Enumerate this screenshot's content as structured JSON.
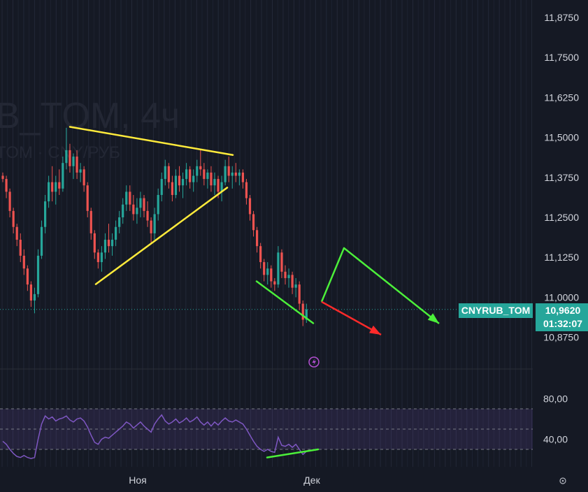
{
  "chart_data": [
    {
      "type": "candlestick",
      "watermark": {
        "title": "B_TOM, 4ч",
        "subtitle": "TOM · CNY/РУБ"
      },
      "ylim": [
        10.8,
        11.94
      ],
      "y_ticks": [
        "11,8750",
        "11,7500",
        "11,6250",
        "11,5000",
        "11,3750",
        "11,2500",
        "11,1250",
        "11,0000",
        "10,8750"
      ],
      "x_ticks": [
        "Ноя",
        "Дек"
      ],
      "grid": true,
      "last_price": {
        "symbol": "CNYRUB_TOM",
        "value": "10,9620",
        "countdown": "01:32:07",
        "price": 10.962
      },
      "colors": {
        "up": "#26a69a",
        "down": "#ef5350",
        "yellow_lines": "#ffeb3b",
        "green_lines": "#4cf03a",
        "red_arrow": "#ff2a2a"
      },
      "annotations": [
        {
          "kind": "line",
          "color": "yellow",
          "from": [
            0.1,
            11.533
          ],
          "to": [
            0.333,
            11.445
          ]
        },
        {
          "kind": "line",
          "color": "yellow",
          "from": [
            0.137,
            11.041
          ],
          "to": [
            0.325,
            11.343
          ]
        },
        {
          "kind": "line",
          "color": "green",
          "from": [
            0.367,
            11.05
          ],
          "to": [
            0.448,
            10.919
          ]
        },
        {
          "kind": "polyline-arrow",
          "color": "green",
          "points": [
            [
              0.46,
              10.986
            ],
            [
              0.492,
              11.154
            ],
            [
              0.628,
              10.918
            ]
          ]
        },
        {
          "kind": "arrow",
          "color": "red",
          "from": [
            0.46,
            10.986
          ],
          "to": [
            0.545,
            10.883
          ]
        }
      ],
      "candles_approx": [
        {
          "o": 11.38,
          "h": 11.39,
          "l": 11.36,
          "c": 11.37
        },
        {
          "o": 11.37,
          "h": 11.38,
          "l": 11.31,
          "c": 11.33
        },
        {
          "o": 11.33,
          "h": 11.34,
          "l": 11.25,
          "c": 11.27
        },
        {
          "o": 11.27,
          "h": 11.28,
          "l": 11.2,
          "c": 11.22
        },
        {
          "o": 11.22,
          "h": 11.23,
          "l": 11.16,
          "c": 11.18
        },
        {
          "o": 11.18,
          "h": 11.2,
          "l": 11.11,
          "c": 11.13
        },
        {
          "o": 11.13,
          "h": 11.15,
          "l": 11.07,
          "c": 11.09
        },
        {
          "o": 11.09,
          "h": 11.1,
          "l": 11.02,
          "c": 11.04
        },
        {
          "o": 11.04,
          "h": 11.05,
          "l": 10.97,
          "c": 10.99
        },
        {
          "o": 10.99,
          "h": 11.03,
          "l": 10.95,
          "c": 11.01
        },
        {
          "o": 11.01,
          "h": 11.15,
          "l": 11.0,
          "c": 11.13
        },
        {
          "o": 11.13,
          "h": 11.24,
          "l": 11.12,
          "c": 11.22
        },
        {
          "o": 11.22,
          "h": 11.32,
          "l": 11.2,
          "c": 11.3
        },
        {
          "o": 11.3,
          "h": 11.38,
          "l": 11.28,
          "c": 11.36
        },
        {
          "o": 11.36,
          "h": 11.41,
          "l": 11.3,
          "c": 11.33
        },
        {
          "o": 11.33,
          "h": 11.38,
          "l": 11.29,
          "c": 11.36
        },
        {
          "o": 11.36,
          "h": 11.4,
          "l": 11.32,
          "c": 11.34
        },
        {
          "o": 11.34,
          "h": 11.44,
          "l": 11.33,
          "c": 11.42
        },
        {
          "o": 11.42,
          "h": 11.53,
          "l": 11.4,
          "c": 11.46
        },
        {
          "o": 11.46,
          "h": 11.48,
          "l": 11.39,
          "c": 11.41
        },
        {
          "o": 11.41,
          "h": 11.45,
          "l": 11.37,
          "c": 11.44
        },
        {
          "o": 11.44,
          "h": 11.46,
          "l": 11.37,
          "c": 11.39
        },
        {
          "o": 11.39,
          "h": 11.42,
          "l": 11.36,
          "c": 11.4
        },
        {
          "o": 11.4,
          "h": 11.41,
          "l": 11.33,
          "c": 11.35
        },
        {
          "o": 11.35,
          "h": 11.36,
          "l": 11.25,
          "c": 11.27
        },
        {
          "o": 11.27,
          "h": 11.28,
          "l": 11.18,
          "c": 11.2
        },
        {
          "o": 11.2,
          "h": 11.21,
          "l": 11.12,
          "c": 11.14
        },
        {
          "o": 11.14,
          "h": 11.15,
          "l": 11.09,
          "c": 11.11
        },
        {
          "o": 11.11,
          "h": 11.16,
          "l": 11.08,
          "c": 11.14
        },
        {
          "o": 11.14,
          "h": 11.2,
          "l": 11.12,
          "c": 11.18
        },
        {
          "o": 11.18,
          "h": 11.23,
          "l": 11.14,
          "c": 11.16
        },
        {
          "o": 11.16,
          "h": 11.2,
          "l": 11.13,
          "c": 11.18
        },
        {
          "o": 11.18,
          "h": 11.24,
          "l": 11.16,
          "c": 11.22
        },
        {
          "o": 11.22,
          "h": 11.27,
          "l": 11.2,
          "c": 11.25
        },
        {
          "o": 11.25,
          "h": 11.31,
          "l": 11.23,
          "c": 11.29
        },
        {
          "o": 11.29,
          "h": 11.35,
          "l": 11.27,
          "c": 11.33
        },
        {
          "o": 11.33,
          "h": 11.35,
          "l": 11.27,
          "c": 11.29
        },
        {
          "o": 11.29,
          "h": 11.32,
          "l": 11.24,
          "c": 11.26
        },
        {
          "o": 11.26,
          "h": 11.31,
          "l": 11.23,
          "c": 11.28
        },
        {
          "o": 11.28,
          "h": 11.33,
          "l": 11.25,
          "c": 11.31
        },
        {
          "o": 11.31,
          "h": 11.32,
          "l": 11.25,
          "c": 11.27
        },
        {
          "o": 11.27,
          "h": 11.3,
          "l": 11.22,
          "c": 11.24
        },
        {
          "o": 11.24,
          "h": 11.25,
          "l": 11.17,
          "c": 11.2
        },
        {
          "o": 11.2,
          "h": 11.28,
          "l": 11.18,
          "c": 11.26
        },
        {
          "o": 11.26,
          "h": 11.34,
          "l": 11.24,
          "c": 11.32
        },
        {
          "o": 11.32,
          "h": 11.39,
          "l": 11.3,
          "c": 11.37
        },
        {
          "o": 11.37,
          "h": 11.43,
          "l": 11.35,
          "c": 11.41
        },
        {
          "o": 11.41,
          "h": 11.42,
          "l": 11.34,
          "c": 11.36
        },
        {
          "o": 11.36,
          "h": 11.38,
          "l": 11.3,
          "c": 11.32
        },
        {
          "o": 11.32,
          "h": 11.4,
          "l": 11.31,
          "c": 11.38
        },
        {
          "o": 11.38,
          "h": 11.41,
          "l": 11.33,
          "c": 11.35
        },
        {
          "o": 11.35,
          "h": 11.39,
          "l": 11.31,
          "c": 11.37
        },
        {
          "o": 11.37,
          "h": 11.42,
          "l": 11.35,
          "c": 11.4
        },
        {
          "o": 11.4,
          "h": 11.41,
          "l": 11.34,
          "c": 11.36
        },
        {
          "o": 11.36,
          "h": 11.4,
          "l": 11.33,
          "c": 11.38
        },
        {
          "o": 11.38,
          "h": 11.43,
          "l": 11.36,
          "c": 11.41
        },
        {
          "o": 11.41,
          "h": 11.46,
          "l": 11.38,
          "c": 11.4
        },
        {
          "o": 11.4,
          "h": 11.42,
          "l": 11.35,
          "c": 11.37
        },
        {
          "o": 11.37,
          "h": 11.4,
          "l": 11.34,
          "c": 11.39
        },
        {
          "o": 11.39,
          "h": 11.41,
          "l": 11.33,
          "c": 11.35
        },
        {
          "o": 11.35,
          "h": 11.39,
          "l": 11.32,
          "c": 11.37
        },
        {
          "o": 11.37,
          "h": 11.38,
          "l": 11.31,
          "c": 11.33
        },
        {
          "o": 11.33,
          "h": 11.38,
          "l": 11.3,
          "c": 11.36
        },
        {
          "o": 11.36,
          "h": 11.43,
          "l": 11.35,
          "c": 11.41
        },
        {
          "o": 11.41,
          "h": 11.44,
          "l": 11.36,
          "c": 11.38
        },
        {
          "o": 11.38,
          "h": 11.41,
          "l": 11.34,
          "c": 11.39
        },
        {
          "o": 11.39,
          "h": 11.42,
          "l": 11.36,
          "c": 11.38
        },
        {
          "o": 11.38,
          "h": 11.4,
          "l": 11.35,
          "c": 11.39
        },
        {
          "o": 11.39,
          "h": 11.4,
          "l": 11.34,
          "c": 11.36
        },
        {
          "o": 11.36,
          "h": 11.37,
          "l": 11.29,
          "c": 11.31
        },
        {
          "o": 11.31,
          "h": 11.32,
          "l": 11.24,
          "c": 11.26
        },
        {
          "o": 11.26,
          "h": 11.27,
          "l": 11.19,
          "c": 11.21
        },
        {
          "o": 11.21,
          "h": 11.22,
          "l": 11.14,
          "c": 11.16
        },
        {
          "o": 11.16,
          "h": 11.17,
          "l": 11.09,
          "c": 11.11
        },
        {
          "o": 11.11,
          "h": 11.12,
          "l": 11.05,
          "c": 11.07
        },
        {
          "o": 11.07,
          "h": 11.11,
          "l": 11.04,
          "c": 11.09
        },
        {
          "o": 11.09,
          "h": 11.1,
          "l": 11.03,
          "c": 11.05
        },
        {
          "o": 11.05,
          "h": 11.06,
          "l": 11.02,
          "c": 11.04
        },
        {
          "o": 11.04,
          "h": 11.16,
          "l": 11.03,
          "c": 11.14
        },
        {
          "o": 11.14,
          "h": 11.15,
          "l": 11.06,
          "c": 11.08
        },
        {
          "o": 11.08,
          "h": 11.1,
          "l": 11.04,
          "c": 11.06
        },
        {
          "o": 11.06,
          "h": 11.09,
          "l": 11.03,
          "c": 11.07
        },
        {
          "o": 11.07,
          "h": 11.08,
          "l": 11.01,
          "c": 11.03
        },
        {
          "o": 11.03,
          "h": 11.06,
          "l": 11.0,
          "c": 11.04
        },
        {
          "o": 11.04,
          "h": 11.05,
          "l": 10.96,
          "c": 10.98
        },
        {
          "o": 10.98,
          "h": 10.99,
          "l": 10.91,
          "c": 10.93
        },
        {
          "o": 10.93,
          "h": 10.98,
          "l": 10.92,
          "c": 10.962
        }
      ],
      "rsi": {
        "ylim": [
          20,
          90
        ],
        "ticks": [
          "80,00",
          "40,00"
        ],
        "levels": [
          70,
          50,
          30
        ],
        "values": [
          38,
          35,
          30,
          26,
          23,
          22,
          24,
          22,
          21,
          22,
          40,
          55,
          63,
          60,
          62,
          58,
          60,
          61,
          63,
          59,
          57,
          60,
          61,
          58,
          52,
          44,
          37,
          35,
          40,
          42,
          41,
          44,
          47,
          50,
          53,
          57,
          55,
          51,
          54,
          57,
          53,
          50,
          47,
          55,
          60,
          64,
          58,
          55,
          57,
          60,
          56,
          58,
          61,
          57,
          59,
          62,
          57,
          54,
          57,
          53,
          57,
          54,
          58,
          61,
          58,
          57,
          59,
          57,
          55,
          50,
          44,
          38,
          33,
          30,
          28,
          30,
          28,
          27,
          42,
          34,
          33,
          35,
          32,
          35,
          30,
          25,
          28
        ],
        "divergence_line": {
          "from": [
            0.382,
            22
          ],
          "to": [
            0.455,
            30
          ]
        }
      }
    }
  ]
}
